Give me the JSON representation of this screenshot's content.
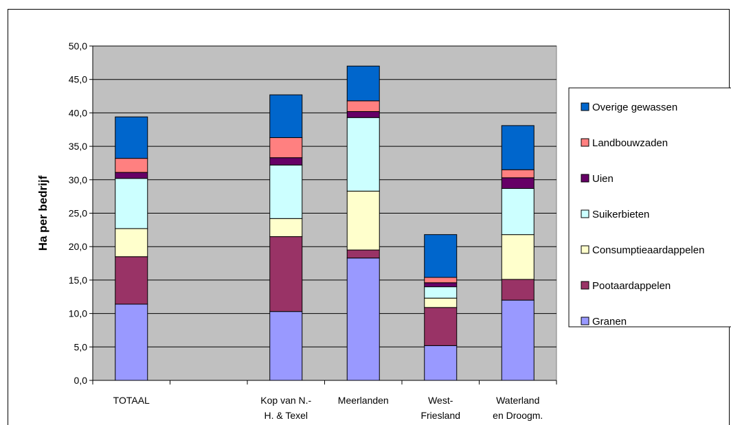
{
  "chart_data": {
    "type": "bar",
    "stacked": true,
    "ylabel": "Ha per bedrijf",
    "xlabel": "",
    "ylim": [
      0,
      50
    ],
    "ytick_step": 5,
    "ytick_labels": [
      "0,0",
      "5,0",
      "10,0",
      "15,0",
      "20,0",
      "25,0",
      "30,0",
      "35,0",
      "40,0",
      "45,0",
      "50,0"
    ],
    "grid": true,
    "legend_position": "right",
    "categories": [
      [
        "TOTAAL"
      ],
      [
        ""
      ],
      [
        "Kop van N.-",
        "H. & Texel"
      ],
      [
        "Meerlanden"
      ],
      [
        "West-",
        "Friesland"
      ],
      [
        "Waterland",
        "en Droogm."
      ]
    ],
    "series": [
      {
        "name": "Granen",
        "color": "#9999FF",
        "values": [
          11.4,
          0,
          10.3,
          18.3,
          5.2,
          12.0
        ]
      },
      {
        "name": "Pootaardappelen",
        "color": "#993366",
        "values": [
          7.1,
          0,
          11.2,
          1.2,
          5.7,
          3.1
        ]
      },
      {
        "name": "Consumptieaardappelen",
        "color": "#FFFFCC",
        "values": [
          4.2,
          0,
          2.7,
          8.8,
          1.4,
          6.7
        ]
      },
      {
        "name": "Suikerbieten",
        "color": "#CCFFFF",
        "values": [
          7.5,
          0,
          8.0,
          11.0,
          1.7,
          6.9
        ]
      },
      {
        "name": "Uien",
        "color": "#660066",
        "values": [
          0.9,
          0,
          1.1,
          0.9,
          0.6,
          1.6
        ]
      },
      {
        "name": "Landbouwzaden",
        "color": "#FF8080",
        "values": [
          2.1,
          0,
          3.0,
          1.6,
          0.8,
          1.2
        ]
      },
      {
        "name": "Overige gewassen",
        "color": "#0066CC",
        "values": [
          6.2,
          0,
          6.4,
          5.2,
          6.4,
          6.6
        ]
      }
    ],
    "colors": {
      "plot_background": "#C0C0C0",
      "gridline": "#000000"
    }
  }
}
